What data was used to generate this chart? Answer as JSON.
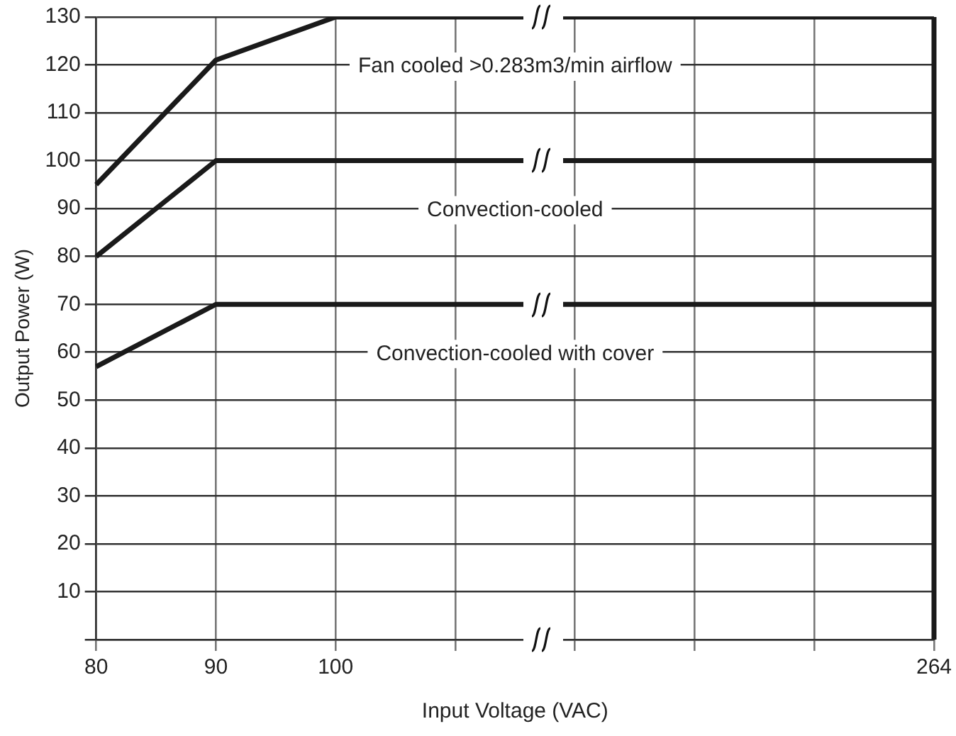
{
  "chart_data": {
    "type": "line",
    "xlabel": "Input Voltage (VAC)",
    "ylabel": "Output Power (W)",
    "categories": [
      "80",
      "90",
      "100",
      null,
      null,
      null,
      null,
      "264"
    ],
    "series": [
      {
        "color": "#1a1a1a",
        "values": [
          95,
          121,
          130,
          130,
          130,
          130,
          130,
          130
        ]
      },
      {
        "color": "#1a1a1a",
        "values": [
          80,
          100,
          100,
          100,
          100,
          100,
          100,
          100
        ]
      },
      {
        "color": "#1a1a1a",
        "values": [
          57,
          70,
          70,
          70,
          70,
          70,
          70,
          70
        ]
      }
    ],
    "ylim": [
      0,
      130
    ],
    "yticks": [
      {
        "value": 0,
        "label": null
      },
      10,
      20,
      30,
      40,
      50,
      60,
      70,
      80,
      90,
      100,
      110,
      120,
      130
    ],
    "ref_lines": [
      {
        "axis": "x",
        "value": "264",
        "color": "#1a1a1a"
      }
    ],
    "annotations": [
      "Fan cooled >0.283m3/min airflow",
      "Convection-cooled",
      "Convection-cooled with cover"
    ],
    "grid": true,
    "legend": false,
    "marker": "none",
    "line_style": "solid"
  }
}
